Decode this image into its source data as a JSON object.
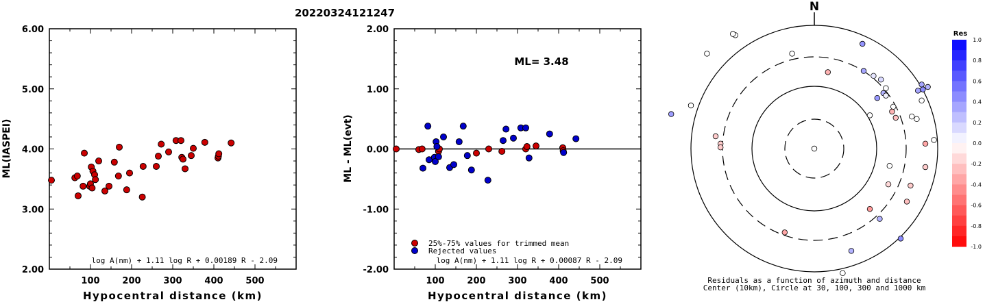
{
  "event_id": "20220324121247",
  "chart_data": [
    {
      "type": "scatter",
      "title": "",
      "xlabel": "Hypocentral distance (km)",
      "ylabel": "ML(IASPEI)",
      "xlim": [
        0,
        600
      ],
      "ylim": [
        2.0,
        6.0
      ],
      "x_ticks": [
        "100",
        "200",
        "300",
        "400",
        "500"
      ],
      "y_ticks": [
        "2.00",
        "3.00",
        "4.00",
        "5.00",
        "6.00"
      ],
      "formula": "log A(nm) + 1.11 log R + 0.00189 R - 2.09",
      "series": [
        {
          "color": "#cc0000",
          "points": [
            [
              5,
              3.48
            ],
            [
              62,
              3.52
            ],
            [
              68,
              3.55
            ],
            [
              70,
              3.22
            ],
            [
              82,
              3.38
            ],
            [
              85,
              3.93
            ],
            [
              98,
              3.38
            ],
            [
              100,
              3.42
            ],
            [
              102,
              3.7
            ],
            [
              104,
              3.35
            ],
            [
              106,
              3.63
            ],
            [
              110,
              3.57
            ],
            [
              112,
              3.49
            ],
            [
              120,
              3.8
            ],
            [
              135,
              3.3
            ],
            [
              145,
              3.38
            ],
            [
              158,
              3.78
            ],
            [
              168,
              3.55
            ],
            [
              170,
              4.03
            ],
            [
              188,
              3.32
            ],
            [
              195,
              3.6
            ],
            [
              226,
              3.2
            ],
            [
              228,
              3.71
            ],
            [
              260,
              3.71
            ],
            [
              265,
              3.88
            ],
            [
              272,
              4.08
            ],
            [
              290,
              3.95
            ],
            [
              308,
              4.14
            ],
            [
              320,
              4.14
            ],
            [
              322,
              3.86
            ],
            [
              325,
              3.83
            ],
            [
              330,
              3.67
            ],
            [
              345,
              3.89
            ],
            [
              350,
              4.01
            ],
            [
              378,
              4.11
            ],
            [
              410,
              3.85
            ],
            [
              411,
              3.88
            ],
            [
              412,
              3.92
            ],
            [
              442,
              4.1
            ]
          ]
        }
      ]
    },
    {
      "type": "scatter",
      "title": "",
      "xlabel": "Hypocentral distance (km)",
      "ylabel": "ML - ML(evt)",
      "xlim": [
        0,
        600
      ],
      "ylim": [
        -2.0,
        2.0
      ],
      "x_ticks": [
        "100",
        "200",
        "300",
        "400",
        "500"
      ],
      "y_ticks": [
        "-2.00",
        "-1.00",
        "0.00",
        "1.00",
        "2.00"
      ],
      "annotation": "ML= 3.48",
      "formula": "log A(nm) + 1.11 log R + 0.00087 R - 2.09",
      "legend_position": "bottom-left",
      "series": [
        {
          "name": "25%-75% values for trimmed mean",
          "color": "#cc0000",
          "points": [
            [
              5,
              0.0
            ],
            [
              60,
              -0.01
            ],
            [
              68,
              0.0
            ],
            [
              108,
              -0.04
            ],
            [
              110,
              0.0
            ],
            [
              200,
              -0.07
            ],
            [
              230,
              0.0
            ],
            [
              262,
              -0.04
            ],
            [
              320,
              0.0
            ],
            [
              323,
              0.04
            ],
            [
              345,
              0.05
            ],
            [
              410,
              0.02
            ],
            [
              411,
              -0.03
            ]
          ]
        },
        {
          "name": "Rejected values",
          "color": "#0000cc",
          "points": [
            [
              70,
              -0.32
            ],
            [
              82,
              0.38
            ],
            [
              85,
              -0.18
            ],
            [
              98,
              -0.14
            ],
            [
              100,
              -0.21
            ],
            [
              102,
              0.12
            ],
            [
              104,
              0.04
            ],
            [
              108,
              -0.13
            ],
            [
              120,
              0.2
            ],
            [
              135,
              -0.31
            ],
            [
              145,
              -0.26
            ],
            [
              158,
              0.12
            ],
            [
              168,
              0.38
            ],
            [
              178,
              -0.11
            ],
            [
              188,
              -0.35
            ],
            [
              228,
              -0.52
            ],
            [
              265,
              0.14
            ],
            [
              272,
              0.33
            ],
            [
              290,
              0.18
            ],
            [
              308,
              0.35
            ],
            [
              320,
              0.35
            ],
            [
              328,
              -0.15
            ],
            [
              378,
              0.25
            ],
            [
              412,
              -0.06
            ],
            [
              442,
              0.17
            ]
          ]
        }
      ]
    },
    {
      "type": "polar",
      "north_label": "N",
      "caption_lines": [
        "Residuals as a function of azimuth and distance",
        "Center (10km), Circle at 30, 100, 300 and 1000 km"
      ],
      "colorbar": {
        "title": "Res",
        "ticks": [
          "1.0",
          "0.8",
          "0.6",
          "0.4",
          "0.2",
          "0.0",
          "-0.2",
          "-0.4",
          "-0.6",
          "-0.8",
          "-1.0"
        ],
        "max_color": "#0000ff",
        "zero_color": "#ffffff",
        "min_color": "#ff0000"
      },
      "stations": [
        [
          0,
          0,
          0.0
        ],
        [
          -0.64,
          0.92,
          0.0
        ],
        [
          -0.66,
          0.93,
          0.0
        ],
        [
          -0.87,
          0.77,
          0.0
        ],
        [
          -1.0,
          0.35,
          0.0
        ],
        [
          -1.16,
          0.28,
          0.38
        ],
        [
          -0.8,
          0.1,
          -0.2
        ],
        [
          -0.76,
          0.04,
          -0.2
        ],
        [
          -0.76,
          0.01,
          -0.2
        ],
        [
          -0.18,
          0.77,
          0.0
        ],
        [
          0.11,
          0.62,
          -0.3
        ],
        [
          0.39,
          0.85,
          0.42
        ],
        [
          0.4,
          0.63,
          0.35
        ],
        [
          0.48,
          0.59,
          0.1
        ],
        [
          0.54,
          0.56,
          0.15
        ],
        [
          0.58,
          0.49,
          0.0
        ],
        [
          0.56,
          0.45,
          0.3
        ],
        [
          0.51,
          0.41,
          0.4
        ],
        [
          0.58,
          0.43,
          0.05
        ],
        [
          0.64,
          0.34,
          0.0
        ],
        [
          0.66,
          0.25,
          -0.25
        ],
        [
          0.45,
          0.27,
          0.0
        ],
        [
          0.63,
          0.3,
          -0.3
        ],
        [
          0.87,
          0.52,
          0.35
        ],
        [
          0.88,
          0.48,
          0.45
        ],
        [
          0.84,
          0.47,
          0.35
        ],
        [
          0.92,
          0.5,
          0.3
        ],
        [
          0.87,
          0.39,
          0.0
        ],
        [
          0.83,
          0.24,
          0.0
        ],
        [
          0.79,
          0.26,
          0.0
        ],
        [
          0.97,
          0.07,
          0.0
        ],
        [
          0.9,
          0.04,
          -0.35
        ],
        [
          0.61,
          -0.14,
          0.0
        ],
        [
          0.6,
          -0.29,
          -0.15
        ],
        [
          0.78,
          -0.3,
          -0.2
        ],
        [
          0.9,
          -0.15,
          -0.2
        ],
        [
          0.75,
          -0.43,
          -0.25
        ],
        [
          0.45,
          -0.49,
          -0.4
        ],
        [
          0.53,
          -0.57,
          0.3
        ],
        [
          0.7,
          -0.73,
          0.45
        ],
        [
          0.3,
          -0.83,
          0.3
        ],
        [
          0.23,
          -1.01,
          0.0
        ],
        [
          -0.24,
          -0.68,
          -0.35
        ]
      ]
    }
  ]
}
